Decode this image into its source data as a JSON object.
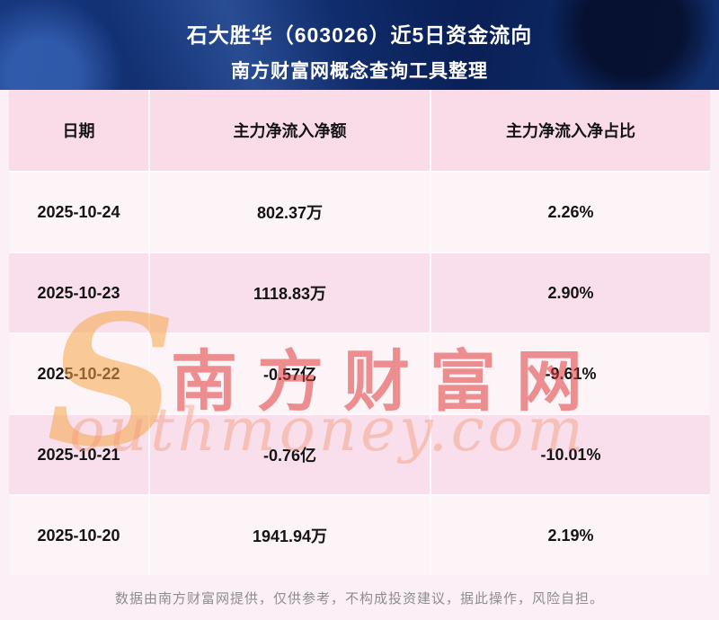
{
  "banner": {
    "title": "石大胜华（603026）近5日资金流向",
    "subtitle": "南方财富网概念查询工具整理"
  },
  "chart_data": {
    "type": "table",
    "title": "石大胜华（603026）近5日资金流向",
    "columns": [
      "日期",
      "主力净流入净额",
      "主力净流入净占比"
    ],
    "rows": [
      [
        "2025-10-24",
        "802.37万",
        "2.26%"
      ],
      [
        "2025-10-23",
        "1118.83万",
        "2.90%"
      ],
      [
        "2025-10-22",
        "-0.57亿",
        "-9.61%"
      ],
      [
        "2025-10-21",
        "-0.76亿",
        "-10.01%"
      ],
      [
        "2025-10-20",
        "1941.94万",
        "2.19%"
      ]
    ]
  },
  "watermark": {
    "initial": "S",
    "cn": "南方财富网",
    "en": "outhmoney.com"
  },
  "footer": {
    "disclaimer": "数据由南方财富网提供，仅供参考，不构成投资建议，据此操作，风险自担。"
  },
  "colors": {
    "banner_bg": "#0e2a68",
    "header_row_bg": "#fadce9",
    "row_odd_bg": "#fdf4f8",
    "row_even_bg": "#f8dfeb",
    "page_bg": "#fceff5",
    "watermark_red": "#de3a3a",
    "watermark_orange": "#f6a649",
    "footer_text": "#8d8d8d"
  }
}
